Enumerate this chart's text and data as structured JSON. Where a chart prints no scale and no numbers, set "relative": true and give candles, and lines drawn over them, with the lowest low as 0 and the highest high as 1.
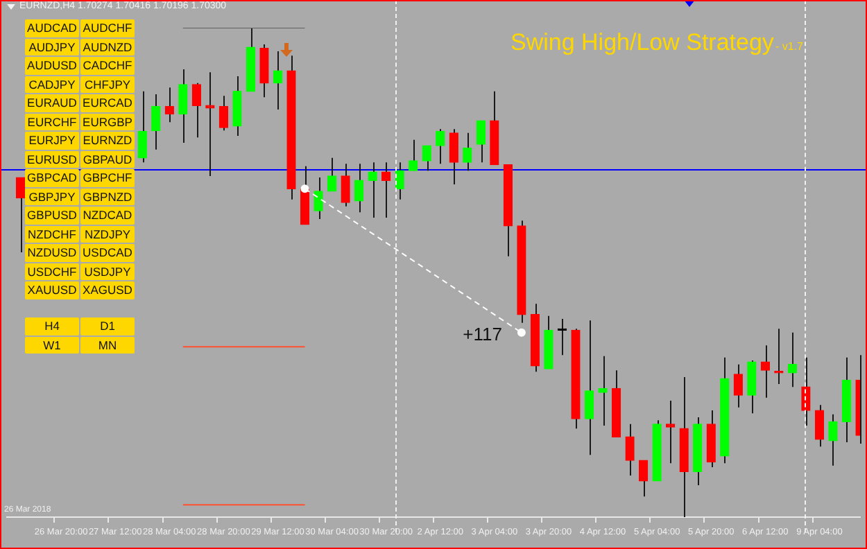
{
  "chart_data": {
    "type": "candlestick",
    "relative": true,
    "title": "EURNZD,H4  1.70274 1.70416 1.70196 1.70300",
    "subtitle": "Swing High/Low Strategy",
    "categories": [
      null,
      null,
      null,
      null,
      "26 Mar 20:00",
      null,
      null,
      null,
      "27 Mar 12:00",
      null,
      null,
      null,
      "28 Mar 04:00",
      null,
      null,
      null,
      "28 Mar 20:00",
      null,
      null,
      null,
      "29 Mar 12:00",
      null,
      null,
      null,
      "30 Mar 04:00",
      null,
      null,
      null,
      "30 Mar 20:00",
      null,
      null,
      null,
      "2 Apr 12:00",
      null,
      null,
      null,
      "3 Apr 04:00",
      null,
      null,
      null,
      "3 Apr 20:00",
      null,
      null,
      null,
      "4 Apr 12:00",
      null,
      null,
      null,
      "5 Apr 04:00",
      null,
      null,
      null,
      "5 Apr 20:00",
      null,
      null,
      null,
      "6 Apr 12:00",
      null,
      null,
      null,
      "9 Apr 04:00",
      null,
      null,
      null
    ],
    "ohlc": [
      null,
      [
        0.694,
        0.694,
        0.541,
        0.652
      ],
      null,
      null,
      null,
      null,
      null,
      null,
      null,
      null,
      [
        0.734,
        0.87,
        0.725,
        0.788
      ],
      [
        0.79,
        0.864,
        0.751,
        0.839
      ],
      [
        0.839,
        0.878,
        0.807,
        0.824
      ],
      [
        0.824,
        0.915,
        0.765,
        0.884
      ],
      [
        0.884,
        0.887,
        0.776,
        0.841
      ],
      [
        0.841,
        0.909,
        0.697,
        0.836
      ],
      [
        0.839,
        0.861,
        0.79,
        0.796
      ],
      [
        0.799,
        0.901,
        0.779,
        0.87
      ],
      [
        0.87,
        1.0,
        0.87,
        0.96
      ],
      [
        0.958,
        0.966,
        0.858,
        0.887
      ],
      [
        0.887,
        0.952,
        0.833,
        0.912
      ],
      [
        0.912,
        0.943,
        0.649,
        0.671
      ],
      [
        0.671,
        0.717,
        0.598,
        0.598
      ],
      [
        0.626,
        0.694,
        0.609,
        0.666
      ],
      [
        0.666,
        0.734,
        0.666,
        0.697
      ],
      [
        0.697,
        0.722,
        0.635,
        0.643
      ],
      [
        0.646,
        0.722,
        0.623,
        0.688
      ],
      [
        0.688,
        0.725,
        0.612,
        0.705
      ],
      [
        0.705,
        0.725,
        0.612,
        0.688
      ],
      [
        0.671,
        0.725,
        0.649,
        0.708
      ],
      [
        0.708,
        0.771,
        0.708,
        0.728
      ],
      [
        0.728,
        0.759,
        0.708,
        0.759
      ],
      [
        0.759,
        0.793,
        0.722,
        0.788
      ],
      [
        0.785,
        0.793,
        0.68,
        0.725
      ],
      [
        0.725,
        0.785,
        0.708,
        0.754
      ],
      [
        0.762,
        0.81,
        0.725,
        0.81
      ],
      [
        0.81,
        0.87,
        0.72,
        0.72
      ],
      [
        0.72,
        0.72,
        0.533,
        0.595
      ],
      [
        0.595,
        0.606,
        0.397,
        0.414
      ],
      [
        0.414,
        0.436,
        0.297,
        0.309
      ],
      [
        0.303,
        0.411,
        0.303,
        0.382
      ],
      [
        0.382,
        0.405,
        0.331,
        0.382
      ],
      [
        0.382,
        0.385,
        0.181,
        0.201
      ],
      [
        0.201,
        0.402,
        0.127,
        0.258
      ],
      [
        0.255,
        0.329,
        0.187,
        0.263
      ],
      [
        0.263,
        0.3,
        0.164,
        0.164
      ],
      [
        0.164,
        0.19,
        0.085,
        0.116
      ],
      [
        0.116,
        0.116,
        0.042,
        0.074
      ],
      [
        0.074,
        0.198,
        0.074,
        0.19
      ],
      [
        0.19,
        0.238,
        0.11,
        0.184
      ],
      [
        0.181,
        0.286,
        0.0,
        0.093
      ],
      [
        0.093,
        0.204,
        0.065,
        0.19
      ],
      [
        0.19,
        0.218,
        0.102,
        0.113
      ],
      [
        0.125,
        0.326,
        0.11,
        0.283
      ],
      [
        0.292,
        0.312,
        0.224,
        0.249
      ],
      [
        0.249,
        0.32,
        0.212,
        0.317
      ],
      [
        0.317,
        0.351,
        0.244,
        0.3
      ],
      [
        0.297,
        0.385,
        0.272,
        0.295
      ],
      [
        0.295,
        0.377,
        0.266,
        0.312
      ],
      [
        0.266,
        0.326,
        0.187,
        0.218
      ],
      [
        0.218,
        0.229,
        0.144,
        0.159
      ],
      [
        0.156,
        0.21,
        0.105,
        0.195
      ],
      [
        0.195,
        0.326,
        0.153,
        0.28
      ],
      [
        0.28,
        0.331,
        0.15,
        0.167
      ]
    ],
    "colors": [
      null,
      "#ff0000",
      null,
      null,
      null,
      null,
      null,
      null,
      null,
      null,
      "#00ff00",
      "#00ff00",
      "#ff0000",
      "#00ff00",
      "#ff0000",
      "#ff0000",
      "#ff0000",
      "#00ff00",
      "#00ff00",
      "#ff0000",
      "#00ff00",
      "#ff0000",
      "#ff0000",
      "#00ff00",
      "#00ff00",
      "#ff0000",
      "#00ff00",
      "#00ff00",
      "#ff0000",
      "#00ff00",
      "#00ff00",
      "#00ff00",
      "#00ff00",
      "#ff0000",
      "#00ff00",
      "#00ff00",
      "#ff0000",
      "#ff0000",
      "#ff0000",
      "#ff0000",
      "#00ff00",
      "#000000",
      "#ff0000",
      "#00ff00",
      "#00ff00",
      "#ff0000",
      "#ff0000",
      "#ff0000",
      "#00ff00",
      "#ff0000",
      "#ff0000",
      "#00ff00",
      "#ff0000",
      "#00ff00",
      "#ff0000",
      "#00ff00",
      "#ff0000",
      "#ff0000",
      "#00ff00",
      "#ff0000",
      "#ff0000",
      "#00ff00",
      "#00ff00",
      "#ff0000"
    ],
    "series": [
      {
        "type": "line",
        "color": "#606060",
        "values": [
          null,
          null,
          null,
          null,
          null,
          null,
          null,
          null,
          null,
          null,
          null,
          null,
          null,
          1.0,
          1.0,
          1.0,
          1.0,
          1.0,
          1.0,
          1.0,
          1.0,
          1.0,
          1.0,
          null,
          null,
          null,
          null,
          null,
          null,
          null,
          null,
          null,
          null,
          null,
          null,
          null,
          null,
          null,
          null,
          null,
          null,
          null,
          null,
          null,
          null,
          null,
          null,
          null,
          null,
          null,
          null,
          null,
          null,
          null,
          null,
          null,
          null,
          null,
          null,
          null,
          null,
          null,
          null,
          null
        ]
      },
      {
        "type": "line",
        "color": "#ff5030",
        "values": [
          null,
          null,
          null,
          null,
          null,
          null,
          null,
          null,
          null,
          null,
          null,
          null,
          null,
          0.348,
          0.348,
          0.348,
          0.348,
          0.348,
          0.348,
          0.348,
          0.348,
          0.348,
          0.348,
          null,
          null,
          null,
          null,
          null,
          null,
          null,
          null,
          null,
          null,
          null,
          null,
          null,
          null,
          null,
          null,
          null,
          null,
          null,
          null,
          null,
          null,
          null,
          null,
          null,
          null,
          null,
          null,
          null,
          null,
          null,
          null,
          null,
          null,
          null,
          null,
          null,
          null,
          null,
          null,
          null
        ]
      },
      {
        "type": "line",
        "color": "#ff5030",
        "values": [
          null,
          null,
          null,
          null,
          null,
          null,
          null,
          null,
          null,
          null,
          null,
          null,
          null,
          0.025,
          0.025,
          0.025,
          0.025,
          0.025,
          0.025,
          0.025,
          0.025,
          0.025,
          0.025,
          null,
          null,
          null,
          null,
          null,
          null,
          null,
          null,
          null,
          null,
          null,
          null,
          null,
          null,
          null,
          null,
          null,
          null,
          null,
          null,
          null,
          null,
          null,
          null,
          null,
          null,
          null,
          null,
          null,
          null,
          null,
          null,
          null,
          null,
          null,
          null,
          null,
          null,
          null,
          null,
          null
        ]
      },
      {
        "type": "line",
        "color": "#ffffff",
        "line_style": "dashed",
        "marker": "circle",
        "values": [
          null,
          null,
          null,
          null,
          null,
          null,
          null,
          null,
          null,
          null,
          null,
          null,
          null,
          null,
          null,
          null,
          null,
          null,
          null,
          null,
          null,
          null,
          0.671,
          null,
          null,
          null,
          null,
          null,
          null,
          null,
          null,
          null,
          null,
          null,
          null,
          null,
          null,
          null,
          0.377,
          null,
          null,
          null,
          null,
          null,
          null,
          null,
          null,
          null,
          null,
          null,
          null,
          null,
          null,
          null,
          null,
          null,
          null,
          null,
          null,
          null,
          null,
          null,
          null,
          null
        ]
      }
    ],
    "ref_lines": [
      {
        "axis": "y",
        "value": 0.711,
        "color": "#0000ff"
      }
    ],
    "annotations": [
      "+117",
      "- v1.7",
      "26 Mar 2018",
      "AUDCAD",
      "AUDCHF",
      "AUDJPY",
      "AUDNZD",
      "AUDUSD",
      "CADCHF",
      "CADJPY",
      "CHFJPY",
      "EURAUD",
      "EURCAD",
      "EURCHF",
      "EURGBP",
      "EURJPY",
      "EURNZD",
      "EURUSD",
      "GBPAUD",
      "GBPCAD",
      "GBPCHF",
      "GBPJPY",
      "GBPNZD",
      "GBPUSD",
      "NZDCAD",
      "NZDCHF",
      "NZDJPY",
      "NZDUSD",
      "USDCAD",
      "USDCHF",
      "USDJPY",
      "XAUUSD",
      "XAGUSD",
      "H4",
      "D1",
      "W1",
      "MN"
    ],
    "legend": false,
    "grid": false,
    "tick_labels": "x"
  }
}
